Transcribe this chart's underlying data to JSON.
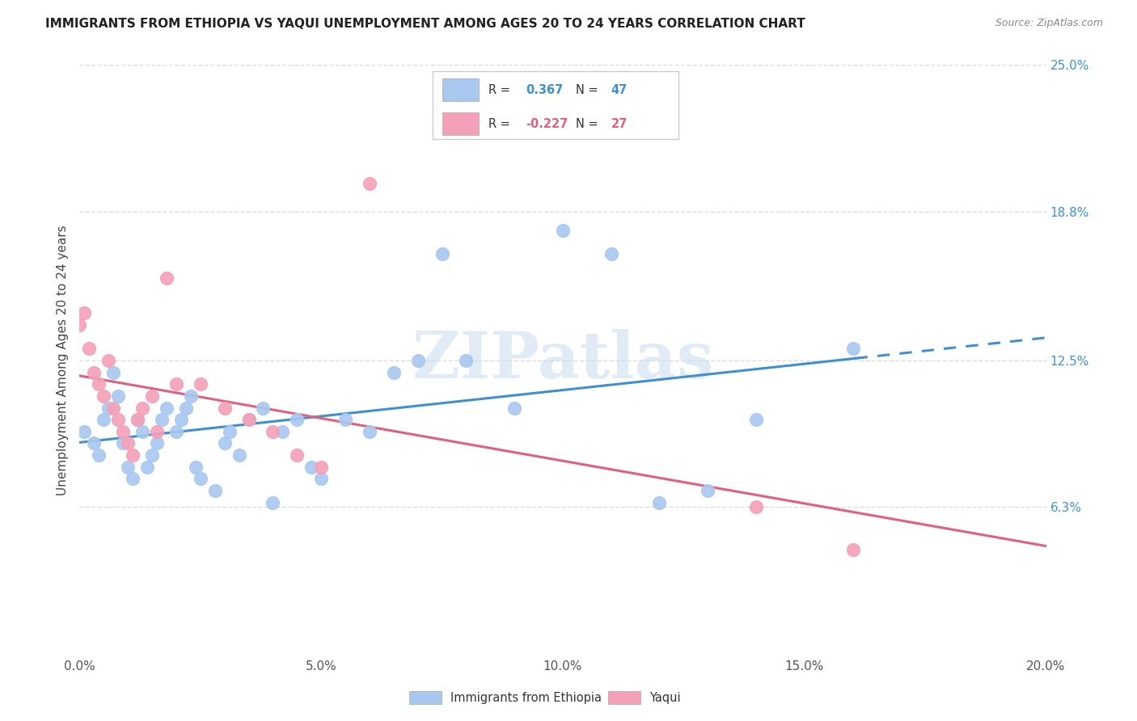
{
  "title": "IMMIGRANTS FROM ETHIOPIA VS YAQUI UNEMPLOYMENT AMONG AGES 20 TO 24 YEARS CORRELATION CHART",
  "source": "Source: ZipAtlas.com",
  "ylabel": "Unemployment Among Ages 20 to 24 years",
  "xlim": [
    0.0,
    0.2
  ],
  "ylim": [
    0.0,
    0.25
  ],
  "xtick_labels": [
    "0.0%",
    "5.0%",
    "10.0%",
    "15.0%",
    "20.0%"
  ],
  "xtick_vals": [
    0.0,
    0.05,
    0.1,
    0.15,
    0.2
  ],
  "ytick_labels_right": [
    "6.3%",
    "12.5%",
    "18.8%",
    "25.0%"
  ],
  "ytick_vals_right": [
    0.063,
    0.125,
    0.188,
    0.25
  ],
  "watermark": "ZIPatlas",
  "legend_label_ethiopia": "Immigrants from Ethiopia",
  "legend_label_yaqui": "Yaqui",
  "blue_color": "#A8C8F0",
  "pink_color": "#F4A0B8",
  "blue_line_color": "#4090D0",
  "pink_line_color": "#E06080",
  "r_blue": "0.367",
  "n_blue": "47",
  "r_pink": "-0.227",
  "n_pink": "27",
  "ethiopia_x": [
    0.001,
    0.003,
    0.004,
    0.005,
    0.006,
    0.007,
    0.008,
    0.009,
    0.01,
    0.011,
    0.012,
    0.013,
    0.014,
    0.015,
    0.016,
    0.017,
    0.018,
    0.02,
    0.021,
    0.022,
    0.023,
    0.024,
    0.025,
    0.028,
    0.03,
    0.031,
    0.033,
    0.035,
    0.038,
    0.04,
    0.042,
    0.045,
    0.048,
    0.05,
    0.055,
    0.06,
    0.065,
    0.07,
    0.075,
    0.08,
    0.09,
    0.1,
    0.11,
    0.12,
    0.13,
    0.14,
    0.16
  ],
  "ethiopia_y": [
    0.095,
    0.09,
    0.085,
    0.1,
    0.105,
    0.12,
    0.11,
    0.09,
    0.08,
    0.075,
    0.1,
    0.095,
    0.08,
    0.085,
    0.09,
    0.1,
    0.105,
    0.095,
    0.1,
    0.105,
    0.11,
    0.08,
    0.075,
    0.07,
    0.09,
    0.095,
    0.085,
    0.1,
    0.105,
    0.065,
    0.095,
    0.1,
    0.08,
    0.075,
    0.1,
    0.095,
    0.12,
    0.125,
    0.17,
    0.125,
    0.105,
    0.18,
    0.17,
    0.065,
    0.07,
    0.1,
    0.13
  ],
  "yaqui_x": [
    0.0,
    0.001,
    0.002,
    0.003,
    0.004,
    0.005,
    0.006,
    0.007,
    0.008,
    0.009,
    0.01,
    0.011,
    0.012,
    0.013,
    0.015,
    0.016,
    0.018,
    0.02,
    0.025,
    0.03,
    0.035,
    0.04,
    0.045,
    0.05,
    0.06,
    0.14,
    0.16
  ],
  "yaqui_y": [
    0.14,
    0.145,
    0.13,
    0.12,
    0.115,
    0.11,
    0.125,
    0.105,
    0.1,
    0.095,
    0.09,
    0.085,
    0.1,
    0.105,
    0.11,
    0.095,
    0.16,
    0.115,
    0.115,
    0.105,
    0.1,
    0.095,
    0.085,
    0.08,
    0.2,
    0.063,
    0.045
  ],
  "background_color": "#ffffff",
  "grid_color": "#DDDDDD"
}
